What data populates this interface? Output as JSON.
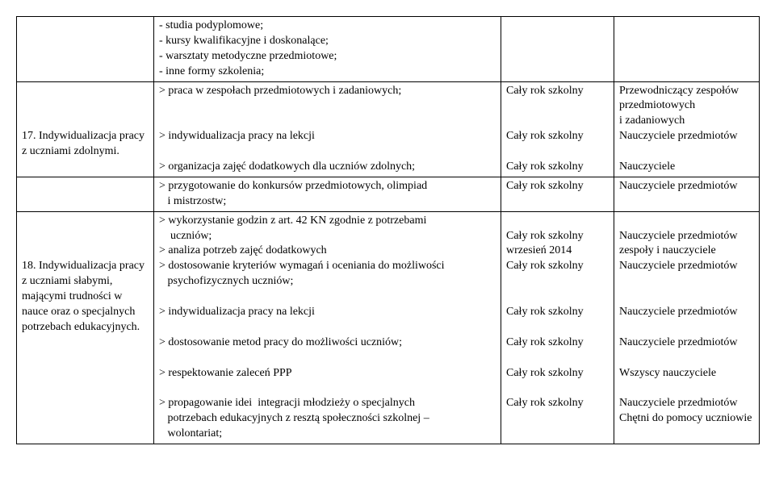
{
  "rows": [
    {
      "c1": "",
      "c2": "- studia podyplomowe;\n- kursy kwalifikacyjne i doskonalące;\n- warsztaty metodyczne przedmiotowe;\n- inne formy szkolenia;",
      "c3": "",
      "c4": ""
    },
    {
      "c1": "\n\n\n17. Indywidualizacja pracy z uczniami zdolnymi.",
      "c2": "> praca w zespołach przedmiotowych i zadaniowych;\n\n\n> indywidualizacja pracy na lekcji\n\n> organizacja zajęć dodatkowych dla uczniów zdolnych;",
      "c3": "Cały rok szkolny\n\n\nCały rok szkolny\n\nCały rok szkolny",
      "c4": "Przewodniczący zespołów przedmiotowych\ni zadaniowych\nNauczyciele przedmiotów\n\nNauczyciele"
    },
    {
      "c1": "",
      "c2": "> przygotowanie do konkursów przedmiotowych, olimpiad\n   i mistrzostw;",
      "c3": "Cały rok szkolny",
      "c4": "Nauczyciele przedmiotów"
    },
    {
      "c1": "\n\n\n18. Indywidualizacja pracy z uczniami słabymi, mającymi trudności w nauce oraz o specjalnych potrzebach edukacyjnych.",
      "c2": "> wykorzystanie godzin z art. 42 KN zgodnie z potrzebami\n    uczniów;\n> analiza potrzeb zajęć dodatkowych\n> dostosowanie kryteriów wymagań i oceniania do możliwości\n   psychofizycznych uczniów;\n\n> indywidualizacja pracy na lekcji\n\n> dostosowanie metod pracy do możliwości uczniów;\n\n> respektowanie zaleceń PPP\n\n> propagowanie idei  integracji młodzieży o specjalnych\n   potrzebach edukacyjnych z resztą społeczności szkolnej –\n   wolontariat;",
      "c3": "\nCały rok szkolny\nwrzesień 2014\nCały rok szkolny\n\n\nCały rok szkolny\n\nCały rok szkolny\n\nCały rok szkolny\n\nCały rok szkolny",
      "c4": "\nNauczyciele przedmiotów zespoły i nauczyciele\nNauczyciele przedmiotów\n\n\nNauczyciele przedmiotów\n\nNauczyciele przedmiotów\n\nWszyscy nauczyciele\n\nNauczyciele przedmiotów\nChętni do pomocy uczniowie"
    }
  ]
}
